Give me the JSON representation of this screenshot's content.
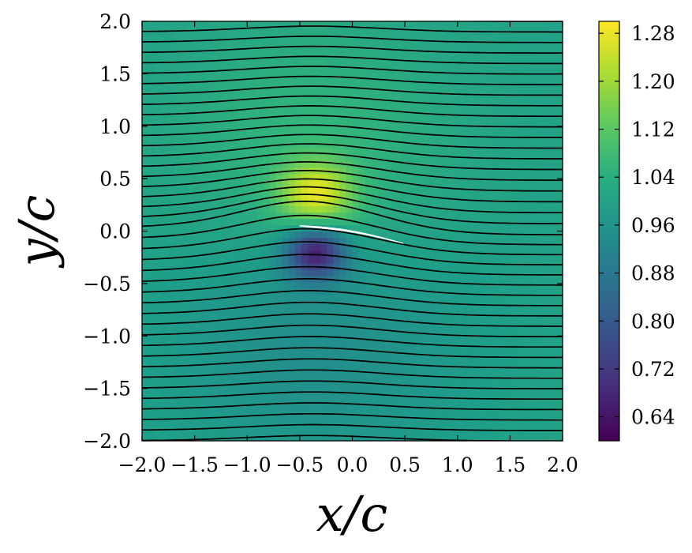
{
  "chart_data": {
    "type": "heatmap",
    "title": "",
    "xlabel": "x/c",
    "ylabel": "y/c",
    "xlim": [
      -2.0,
      2.0
    ],
    "ylim": [
      -2.0,
      2.0
    ],
    "x_ticks": [
      -2.0,
      -1.5,
      -1.0,
      -0.5,
      0.0,
      0.5,
      1.0,
      1.5,
      2.0
    ],
    "x_tick_labels": [
      "−2.0",
      "−1.5",
      "−1.0",
      "−0.5",
      "0.0",
      "0.5",
      "1.0",
      "1.5",
      "2.0"
    ],
    "y_ticks": [
      2.0,
      1.5,
      1.0,
      0.5,
      0.0,
      -0.5,
      -1.0,
      -1.5,
      -2.0
    ],
    "y_tick_labels": [
      "2.0",
      "1.5",
      "1.0",
      "0.5",
      "0.0",
      "−0.5",
      "−1.0",
      "−1.5",
      "−2.0"
    ],
    "colorbar": {
      "colormap": "viridis",
      "range": [
        0.6,
        1.3
      ],
      "ticks": [
        1.28,
        1.2,
        1.12,
        1.04,
        0.96,
        0.88,
        0.8,
        0.72,
        0.64
      ],
      "tick_labels": [
        "1.28",
        "1.20",
        "1.12",
        "1.04",
        "0.96",
        "0.88",
        "0.80",
        "0.72",
        "0.64"
      ]
    },
    "freestream_value": 1.0,
    "max_value_approx": 1.3,
    "min_value_approx": 0.6,
    "max_location": [
      -0.35,
      0.35
    ],
    "min_location": [
      -0.35,
      -0.2
    ],
    "airfoil": {
      "leading_edge": [
        -0.5,
        0.05
      ],
      "trailing_edge": [
        0.5,
        -0.12
      ],
      "color": "#ffffff"
    },
    "streamlines": {
      "count": 41,
      "y_range": [
        -2.0,
        2.0
      ],
      "color": "#000000"
    },
    "grid": false
  }
}
